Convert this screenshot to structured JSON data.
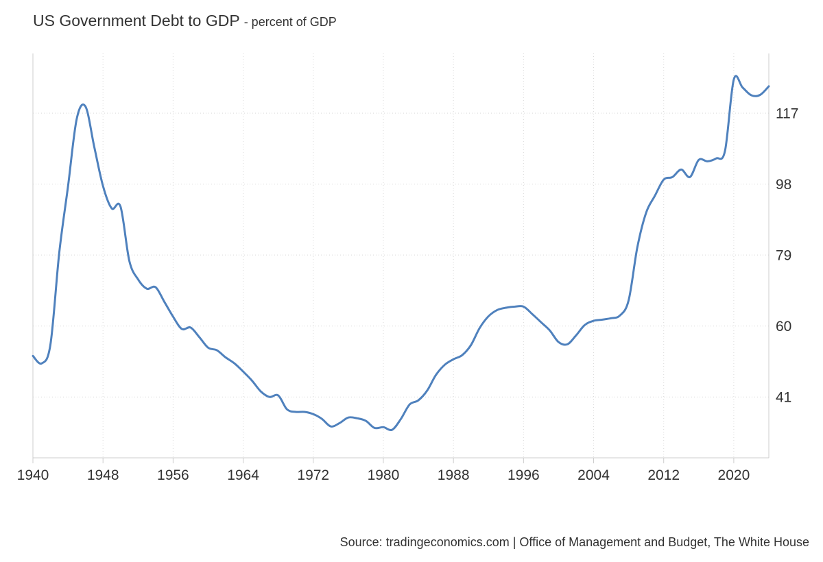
{
  "chart_data": {
    "type": "line",
    "title": "US Government Debt to GDP",
    "subtitle": "- percent of GDP",
    "source": "Source: tradingeconomics.com | Office of Management and Budget, The White House",
    "x": [
      1940,
      1941,
      1942,
      1943,
      1944,
      1945,
      1946,
      1947,
      1948,
      1949,
      1950,
      1951,
      1952,
      1953,
      1954,
      1955,
      1956,
      1957,
      1958,
      1959,
      1960,
      1961,
      1962,
      1963,
      1964,
      1965,
      1966,
      1967,
      1968,
      1969,
      1970,
      1971,
      1972,
      1973,
      1974,
      1975,
      1976,
      1977,
      1978,
      1979,
      1980,
      1981,
      1982,
      1983,
      1984,
      1985,
      1986,
      1987,
      1988,
      1989,
      1990,
      1991,
      1992,
      1993,
      1994,
      1995,
      1996,
      1997,
      1998,
      1999,
      2000,
      2001,
      2002,
      2003,
      2004,
      2005,
      2006,
      2007,
      2008,
      2009,
      2010,
      2011,
      2012,
      2013,
      2014,
      2015,
      2016,
      2017,
      2018,
      2019,
      2020,
      2021,
      2022,
      2023,
      2024
    ],
    "series": [
      {
        "values": [
          52.0,
          50.0,
          55.0,
          79.5,
          97.3,
          115.5,
          118.8,
          108.0,
          97.5,
          91.5,
          92.0,
          77.5,
          72.5,
          70.0,
          70.4,
          66.5,
          62.5,
          59.2,
          59.6,
          57.0,
          54.2,
          53.5,
          51.6,
          50.0,
          47.8,
          45.4,
          42.5,
          41.0,
          41.4,
          37.7,
          37.0,
          37.0,
          36.4,
          35.1,
          33.1,
          34.0,
          35.5,
          35.3,
          34.6,
          32.7,
          32.9,
          32.2,
          35.1,
          39.0,
          40.1,
          42.7,
          46.9,
          49.6,
          51.1,
          52.2,
          54.9,
          59.5,
          62.6,
          64.3,
          64.9,
          65.2,
          65.2,
          63.2,
          61.0,
          58.8,
          55.7,
          55.1,
          57.5,
          60.3,
          61.4,
          61.7,
          62.1,
          62.8,
          66.9,
          81.2,
          90.4,
          94.9,
          99.2,
          99.9,
          101.9,
          99.9,
          104.5,
          104.1,
          104.9,
          106.9,
          126.0,
          123.9,
          121.8,
          121.9,
          124.2
        ]
      }
    ],
    "xlim": [
      1940,
      2024
    ],
    "ylim": [
      24.7,
      133.0
    ],
    "xticks": [
      1940,
      1948,
      1956,
      1964,
      1972,
      1980,
      1988,
      1996,
      2004,
      2012,
      2020
    ],
    "xtick_labels": [
      "1940",
      "1948",
      "1956",
      "1964",
      "1972",
      "1980",
      "1988",
      "1996",
      "2004",
      "2012",
      "2020"
    ],
    "yticks": [
      41,
      60,
      79,
      98,
      117
    ],
    "ytick_labels": [
      "41",
      "60",
      "79",
      "98",
      "117"
    ],
    "grid": true
  },
  "colors": {
    "line": "#4f81bd",
    "grid": "#d9d9d9",
    "axis": "#cccccc",
    "text": "#333333"
  }
}
